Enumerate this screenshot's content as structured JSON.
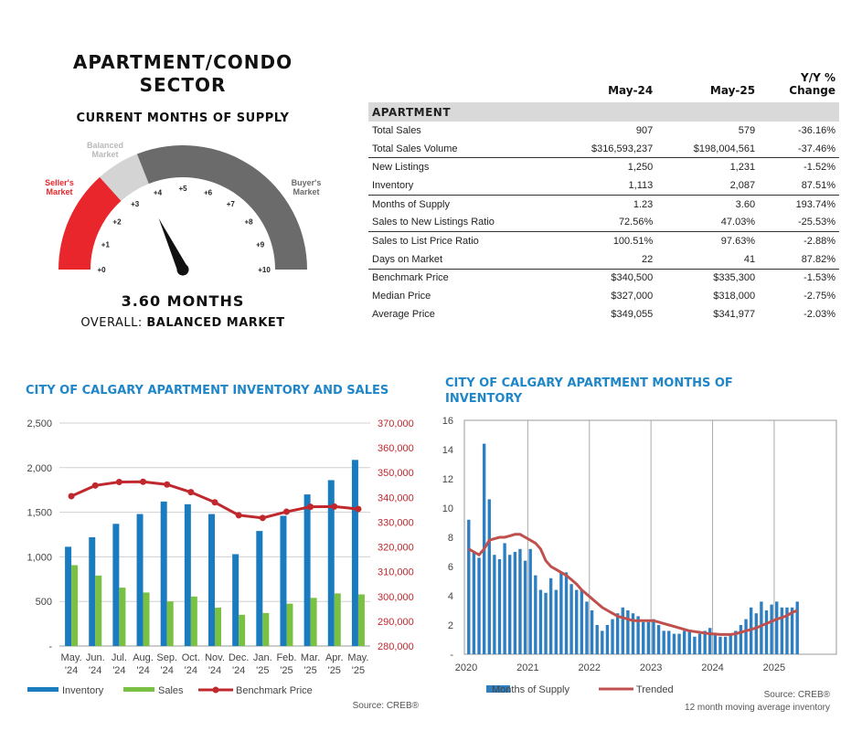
{
  "gauge": {
    "title_line1": "APARTMENT/CONDO",
    "title_line2": "SECTOR",
    "subtitle": "CURRENT MONTHS OF SUPPLY",
    "value_label": "3.60 MONTHS",
    "overall_prefix": "OVERALL:",
    "overall_status": "BALANCED MARKET",
    "value": 3.6,
    "min": 0,
    "max": 10,
    "ticks": [
      "+0",
      "+1",
      "+2",
      "+3",
      "+4",
      "+5",
      "+6",
      "+7",
      "+8",
      "+9",
      "+10"
    ],
    "zones": {
      "sellers": {
        "label_line1": "Seller's",
        "label_line2": "Market",
        "color": "#e8262c",
        "from": 0,
        "to": 2.67
      },
      "balanced": {
        "label_line1": "Balanced",
        "label_line2": "Market",
        "color": "#d4d4d4",
        "from": 2.67,
        "to": 3.8
      },
      "buyers": {
        "label_line1": "Buyer's",
        "label_line2": "Market",
        "color": "#6b6b6b",
        "from": 3.8,
        "to": 10
      }
    }
  },
  "table": {
    "headers": {
      "metric": "",
      "col1": "May-24",
      "col2": "May-25",
      "col3_line1": "Y/Y %",
      "col3_line2": "Change"
    },
    "section": "APARTMENT",
    "rows": [
      {
        "label": "Total Sales",
        "v1": "907",
        "v2": "579",
        "chg": "-36.16%",
        "rule": false
      },
      {
        "label": "Total Sales Volume",
        "v1": "$316,593,237",
        "v2": "$198,004,561",
        "chg": "-37.46%",
        "rule": true
      },
      {
        "label": "New Listings",
        "v1": "1,250",
        "v2": "1,231",
        "chg": "-1.52%",
        "rule": false
      },
      {
        "label": "Inventory",
        "v1": "1,113",
        "v2": "2,087",
        "chg": "87.51%",
        "rule": true
      },
      {
        "label": "Months of Supply",
        "v1": "1.23",
        "v2": "3.60",
        "chg": "193.74%",
        "rule": false
      },
      {
        "label": "Sales to New Listings Ratio",
        "v1": "72.56%",
        "v2": "47.03%",
        "chg": "-25.53%",
        "rule": true
      },
      {
        "label": "Sales to List Price Ratio",
        "v1": "100.51%",
        "v2": "97.63%",
        "chg": "-2.88%",
        "rule": false
      },
      {
        "label": "Days on Market",
        "v1": "22",
        "v2": "41",
        "chg": "87.82%",
        "rule": true
      },
      {
        "label": "Benchmark Price",
        "v1": "$340,500",
        "v2": "$335,300",
        "chg": "-1.53%",
        "rule": false
      },
      {
        "label": "Median Price",
        "v1": "$327,000",
        "v2": "$318,000",
        "chg": "-2.75%",
        "rule": false
      },
      {
        "label": "Average Price",
        "v1": "$349,055",
        "v2": "$341,977",
        "chg": "-2.03%",
        "rule": false
      }
    ]
  },
  "chart_data": [
    {
      "type": "bar",
      "title": "CITY OF CALGARY APARTMENT INVENTORY AND SALES",
      "categories": [
        [
          "May.",
          "'24"
        ],
        [
          "Jun.",
          "'24"
        ],
        [
          "Jul.",
          "'24"
        ],
        [
          "Aug.",
          "'24"
        ],
        [
          "Sep.",
          "'24"
        ],
        [
          "Oct.",
          "'24"
        ],
        [
          "Nov.",
          "'24"
        ],
        [
          "Dec.",
          "'24"
        ],
        [
          "Jan.",
          "'25"
        ],
        [
          "Feb.",
          "'25"
        ],
        [
          "Mar.",
          "'25"
        ],
        [
          "Apr.",
          "'25"
        ],
        [
          "May.",
          "'25"
        ]
      ],
      "series": [
        {
          "name": "Inventory",
          "type": "bar",
          "axis": "left",
          "color": "#1a7bbf",
          "values": [
            1113,
            1220,
            1370,
            1480,
            1620,
            1590,
            1480,
            1030,
            1290,
            1460,
            1700,
            1860,
            2087
          ]
        },
        {
          "name": "Sales",
          "type": "bar",
          "axis": "left",
          "color": "#7ac143",
          "values": [
            907,
            790,
            655,
            600,
            500,
            555,
            430,
            350,
            370,
            475,
            540,
            590,
            579
          ]
        },
        {
          "name": "Benchmark Price",
          "type": "line",
          "axis": "right",
          "color": "#c0282d",
          "values": [
            340500,
            344800,
            346200,
            346300,
            345200,
            342100,
            338000,
            332800,
            331700,
            334200,
            336200,
            336300,
            335300
          ]
        }
      ],
      "y_left": {
        "min": 0,
        "max": 2500,
        "ticks": [
          "-",
          "500",
          "1,000",
          "1,500",
          "2,000",
          "2,500"
        ]
      },
      "y_right": {
        "min": 280000,
        "max": 370000,
        "ticks": [
          "280,000",
          "290,000",
          "300,000",
          "310,000",
          "320,000",
          "330,000",
          "340,000",
          "350,000",
          "360,000",
          "370,000"
        ],
        "color": "#c0282d"
      },
      "grid": true,
      "legend_position": "bottom",
      "source": "Source: CREB®"
    },
    {
      "type": "bar",
      "title_line1": "CITY OF CALGARY APARTMENT MONTHS OF",
      "title_line2": "INVENTORY",
      "x_ticks": [
        "2020",
        "2021",
        "2022",
        "2023",
        "2024",
        "2025"
      ],
      "series": [
        {
          "name": "Months of Supply",
          "type": "bar",
          "color": "#2e7fc1",
          "values": [
            9.2,
            7.0,
            6.6,
            14.4,
            10.6,
            6.8,
            6.5,
            7.6,
            6.8,
            7.0,
            7.2,
            6.4,
            7.2,
            5.4,
            4.4,
            4.2,
            5.2,
            4.4,
            5.6,
            5.6,
            4.8,
            4.4,
            4.4,
            3.6,
            3.0,
            2.0,
            1.6,
            2.0,
            2.4,
            2.8,
            3.2,
            3.0,
            2.8,
            2.6,
            2.2,
            2.2,
            2.4,
            2.0,
            1.6,
            1.6,
            1.4,
            1.4,
            1.6,
            1.6,
            1.2,
            1.4,
            1.6,
            1.8,
            1.4,
            1.2,
            1.2,
            1.4,
            1.6,
            2.0,
            2.4,
            3.2,
            2.8,
            3.6,
            3.0,
            3.4,
            3.6,
            3.2,
            3.2,
            3.2,
            3.6
          ]
        },
        {
          "name": "Trended",
          "type": "line",
          "color": "#c0504d",
          "values": [
            7.2,
            7.0,
            6.8,
            7.2,
            7.8,
            7.9,
            8.0,
            8.0,
            8.1,
            8.2,
            8.2,
            8.0,
            7.8,
            7.6,
            7.2,
            6.4,
            6.0,
            5.8,
            5.6,
            5.4,
            5.1,
            4.8,
            4.4,
            4.1,
            3.8,
            3.5,
            3.2,
            3.0,
            2.8,
            2.6,
            2.5,
            2.4,
            2.3,
            2.3,
            2.3,
            2.3,
            2.3,
            2.2,
            2.1,
            2.0,
            1.9,
            1.8,
            1.7,
            1.6,
            1.55,
            1.5,
            1.45,
            1.4,
            1.38,
            1.35,
            1.35,
            1.35,
            1.4,
            1.5,
            1.6,
            1.7,
            1.8,
            1.95,
            2.1,
            2.25,
            2.4,
            2.5,
            2.65,
            2.85,
            3.0
          ]
        }
      ],
      "ylim": [
        0,
        16
      ],
      "y_ticks": [
        "-",
        "2",
        "4",
        "6",
        "8",
        "10",
        "12",
        "14",
        "16"
      ],
      "grid": "vertical year lines",
      "legend_position": "bottom",
      "source": "Source: CREB®",
      "note": "12 month moving average inventory"
    }
  ]
}
